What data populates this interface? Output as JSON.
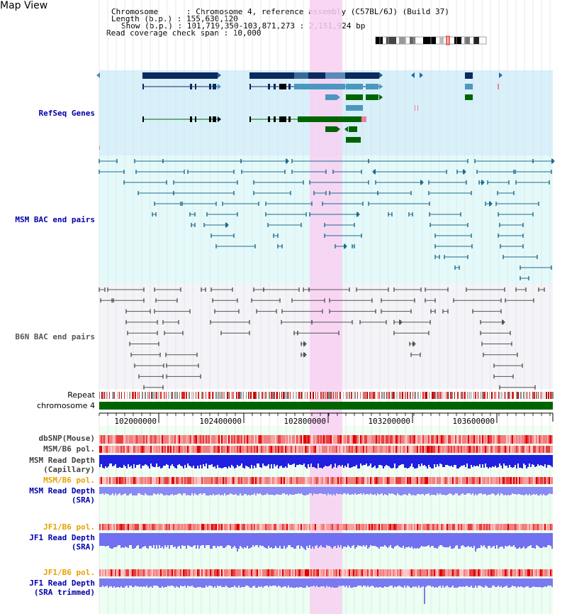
{
  "header": {
    "title": "Map View",
    "chromosome_line": "Chromosome      : Chromosome 4, reference assembly (C57BL/6J) (Build 37)",
    "length_line": "Length (b.p.) : 155,630,120",
    "show_line": "Show (b.p.) : 101,719,350-103,871,273 : 2,151,924 bp",
    "read_span_line": "Read coverage check span : 10,000"
  },
  "tracks": {
    "refseq": "RefSeq Genes",
    "msm_bac": "MSM BAC end pairs",
    "b6n_bac": "B6N BAC end pairs",
    "repeat": "Repeat",
    "chromosome": "chromosome 4",
    "dbsnp": "dbSNP(Mouse)",
    "msm_b6_pol": "MSM/B6 pol.",
    "msm_read_depth_cap_1": "MSM Read Depth",
    "msm_read_depth_cap_2": "(Capillary)",
    "msm_b6_pol_sra": "MSM/B6 pol.",
    "msm_read_depth_sra_1": "MSM Read Depth",
    "msm_read_depth_sra_2": "(SRA)",
    "jf1_b6_pol_sra": "JF1/B6 pol.",
    "jf1_read_depth_sra_1": "JF1 Read Depth",
    "jf1_read_depth_sra_2": "(SRA)",
    "jf1_b6_pol_trim": "JF1/B6 pol.",
    "jf1_read_depth_trim_1": "JF1 Read Depth",
    "jf1_read_depth_trim_2": "(SRA trimmed)"
  },
  "ruler": {
    "ticks": [
      "102000000",
      "102400000",
      "102800000",
      "103200000",
      "103600000"
    ]
  },
  "colors": {
    "refseq_bg": "#d8f0fa",
    "msm_bg": "#e4fafa",
    "b6n_bg": "#f4f4f8",
    "highlight": "#f8d8f4",
    "gene_dark": "#0a2a60",
    "gene_light": "#4a98c0",
    "gene_green": "#006400",
    "msm_line": "#206a8a",
    "b6n_line": "#555555",
    "depth_blue": "#2020e0",
    "depth_lavender": "#7070f0",
    "chromosome_green": "#006400"
  }
}
